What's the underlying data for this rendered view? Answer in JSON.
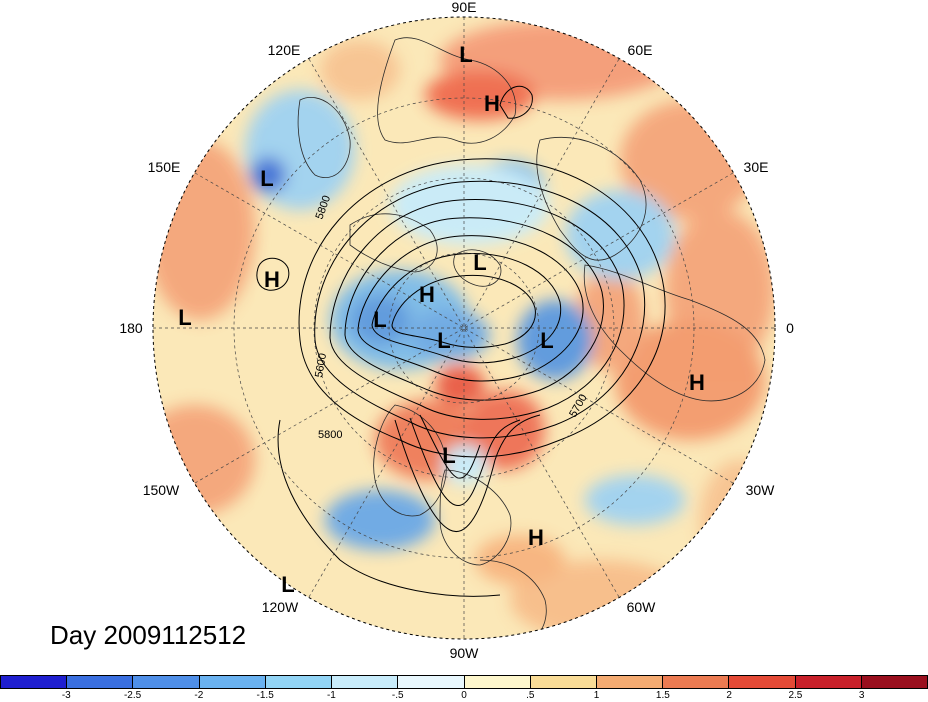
{
  "map": {
    "longitude_labels": {
      "top": "90E",
      "top_left": "120E",
      "top_right": "60E",
      "upper_left": "150E",
      "upper_right": "30E",
      "left": "180",
      "right": "0",
      "lower_left": "150W",
      "lower_right": "30W",
      "bottom_left": "120W",
      "bottom_right": "60W",
      "bottom": "90W"
    },
    "pressure_centers": [
      {
        "id": "L-90E",
        "label": "L"
      },
      {
        "id": "H-90E",
        "label": "H"
      },
      {
        "id": "L-150E",
        "label": "L"
      },
      {
        "id": "H-150E-lower",
        "label": "H"
      },
      {
        "id": "L-180",
        "label": "L"
      },
      {
        "id": "L-arctic",
        "label": "L"
      },
      {
        "id": "H-arctic",
        "label": "H"
      },
      {
        "id": "L-arctic-west",
        "label": "L"
      },
      {
        "id": "L-pole",
        "label": "L"
      },
      {
        "id": "L-atlantic",
        "label": "L"
      },
      {
        "id": "H-africa",
        "label": "H"
      },
      {
        "id": "L-namerica",
        "label": "L"
      },
      {
        "id": "H-caribbean",
        "label": "H"
      },
      {
        "id": "L-120W",
        "label": "L"
      }
    ],
    "contour_labels": [
      "5800",
      "5600",
      "5800",
      "5700"
    ],
    "colors": {
      "ocean_background": "#fbe5b0",
      "warm": "#f3916b",
      "cool": "#9fd0f0"
    }
  },
  "footer": {
    "day_label": "Day 2009112512"
  },
  "colorbar": {
    "colors": [
      "#1f1fd0",
      "#3a6fe0",
      "#4f8fe8",
      "#6ab2f0",
      "#92d4f5",
      "#c8ecfb",
      "#e8f7fd",
      "#fdf6cc",
      "#f9dc97",
      "#f4ab72",
      "#ec7b52",
      "#e44a36",
      "#c8202a",
      "#9a0f1e"
    ],
    "tick_labels": [
      "-3",
      "-2.5",
      "-2",
      "-1.5",
      "-1",
      "-.5",
      "0",
      ".5",
      "1",
      "1.5",
      "2",
      "2.5",
      "3"
    ]
  }
}
